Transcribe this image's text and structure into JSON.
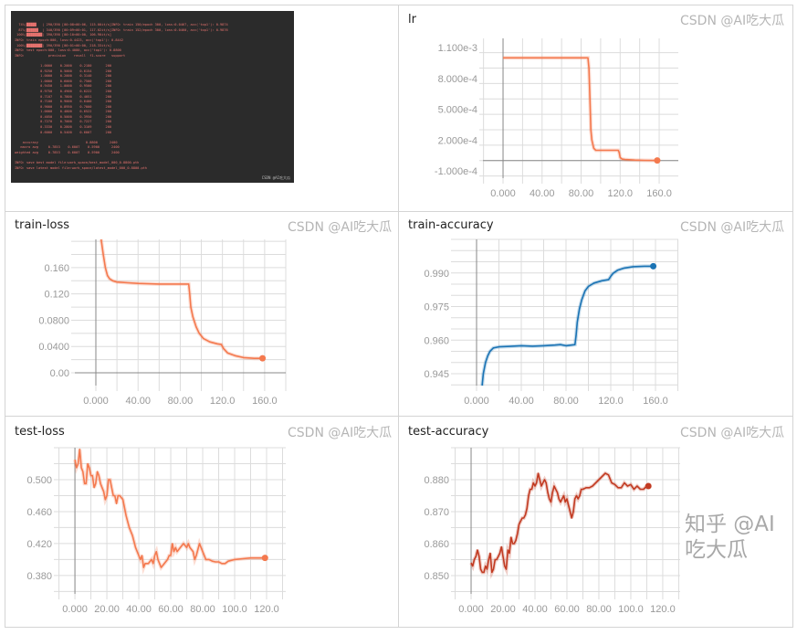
{
  "terminal": {
    "lines": [
      "  74%|█████   | 290/390 [00:08<00:06, 115.00it/s]INFO: train 150/epoch 300, loss:0.0467, acc('top1'): 0.9874",
      "  87%|██████  | 340/390 [00:09<00:01, 117.02it/s]INFO: train 152/epoch 300, loss:0.0460, acc('top1'): 0.9876",
      " 100%|████████| 390/390 [00:10<00:00, 106.90it/s]",
      "INFO: train epoch:000, loss:0.4423, acc('top1'): 0.8442",
      " 100%|████████| 390/390 [00:01<00:00, 218.33it/s]",
      "INFO: test epoch:000, loss:0.4080, acc('top1'): 0.8800",
      "INFO:            precision    recall  f1-score   support",
      "",
      "             1.0000    0.2000    0.2180       200",
      "             0.9250    0.5000    0.6154       200",
      "             1.0000    0.2000    0.3140       200",
      "             1.0000    0.6000    0.7500       200",
      "             0.9450    1.0000    0.9500       200",
      "             0.9750    0.4900    0.6222       200",
      "             0.7107    0.7800    0.4051       200",
      "             0.7100    0.9000    0.6400       200",
      "             0.9000    0.8950    0.7000       200",
      "             1.0000    0.4800    0.6522       200",
      "             0.4050    0.5000    0.3950       200",
      "             0.7270    0.7000    0.7227       200",
      "             0.3330    0.2800    0.3109       200",
      "             0.6000    0.5400    0.6007       200",
      "",
      "    accuracy                        0.8800      2400",
      "   macro avg     0.7853    0.6007    0.5900      2400",
      "weighted avg     0.7853    0.6007    0.5900      2400",
      "",
      "INFO: save best model file:work_space/best_model_000_0.8800.pth",
      "INFO: save latest model file:work_space/latest_model_000_0.8800.pth"
    ],
    "watermark": "CSDN @AI吃大瓜"
  },
  "watermark": "CSDN @AI吃大瓜",
  "big_watermark": "知乎 @AI吃大瓜",
  "chart_data": [
    {
      "id": "lr",
      "type": "line",
      "title": "lr",
      "color": "#f4794e",
      "xlim": [
        -20.6,
        179.6
      ],
      "ylim": [
        -0.000171,
        0.001189
      ],
      "xticks": [
        0,
        40,
        80,
        120,
        160
      ],
      "xtick_labels": [
        "0.000",
        "40.00",
        "80.00",
        "120.0",
        "160.0"
      ],
      "yticks": [
        0.0011,
        0.0008,
        0.0005,
        0.0002,
        -0.0001
      ],
      "ytick_labels": [
        "1.100e-3",
        "8.000e-4",
        "5.000e-4",
        "2.000e-4",
        "-1.000e-4"
      ],
      "xgrid_step": 20,
      "ygrid_step": 0.00015,
      "grid": true,
      "x": [
        0,
        20,
        40,
        60,
        80,
        87,
        88,
        89,
        90,
        91,
        93,
        95,
        100,
        110,
        118,
        119,
        120,
        122,
        125,
        135,
        145,
        158
      ],
      "y": [
        0.001,
        0.001,
        0.001,
        0.001,
        0.001,
        0.001,
        0.0009,
        0.0006,
        0.0003,
        0.0002,
        0.00012,
        0.0001,
        0.0001,
        0.0001,
        0.0001,
        8e-05,
        3e-05,
        1.5e-05,
        1e-05,
        5e-06,
        2e-06,
        1e-06
      ]
    },
    {
      "id": "train-loss",
      "type": "line",
      "title": "train-loss",
      "color": "#f4794e",
      "xlim": [
        -19.9,
        180
      ],
      "ylim": [
        -0.0195,
        0.203
      ],
      "xticks": [
        0,
        40,
        80,
        120,
        160
      ],
      "xtick_labels": [
        "0.000",
        "40.00",
        "80.00",
        "120.0",
        "160.0"
      ],
      "yticks": [
        0.16,
        0.12,
        0.08,
        0.04,
        0.0
      ],
      "ytick_labels": [
        "0.160",
        "0.120",
        "0.0800",
        "0.0400",
        "0.00"
      ],
      "xgrid_step": 20,
      "ygrid_step": 0.02,
      "grid": true,
      "x": [
        5,
        7,
        9,
        11,
        13,
        16,
        20,
        30,
        40,
        60,
        80,
        88,
        89,
        90,
        92,
        95,
        98,
        102,
        108,
        115,
        119,
        121,
        125,
        132,
        140,
        150,
        158
      ],
      "y": [
        0.203,
        0.18,
        0.16,
        0.148,
        0.143,
        0.14,
        0.138,
        0.137,
        0.136,
        0.135,
        0.135,
        0.135,
        0.12,
        0.1,
        0.085,
        0.07,
        0.06,
        0.052,
        0.047,
        0.044,
        0.043,
        0.037,
        0.03,
        0.026,
        0.023,
        0.022,
        0.022
      ]
    },
    {
      "id": "train-accuracy",
      "type": "line",
      "title": "train-accuracy",
      "color": "#1a73b4",
      "xlim": [
        -19.6,
        180.4
      ],
      "ylim": [
        0.9397,
        1.005
      ],
      "xticks": [
        0,
        40,
        80,
        120,
        160
      ],
      "xtick_labels": [
        "0.000",
        "40.00",
        "80.00",
        "120.0",
        "160.0"
      ],
      "yticks": [
        0.99,
        0.975,
        0.96,
        0.945
      ],
      "ytick_labels": [
        "0.990",
        "0.975",
        "0.960",
        "0.945"
      ],
      "xgrid_step": 20,
      "ygrid_step": 0.005,
      "grid": true,
      "x": [
        5,
        6,
        8,
        10,
        12,
        15,
        20,
        30,
        40,
        50,
        60,
        70,
        75,
        80,
        88,
        89,
        90,
        92,
        94,
        97,
        100,
        105,
        112,
        118,
        120,
        122,
        126,
        132,
        140,
        150,
        158
      ],
      "y": [
        0.9397,
        0.945,
        0.95,
        0.953,
        0.955,
        0.9565,
        0.957,
        0.9572,
        0.9575,
        0.9573,
        0.9575,
        0.9578,
        0.958,
        0.9575,
        0.958,
        0.962,
        0.968,
        0.974,
        0.978,
        0.982,
        0.984,
        0.9855,
        0.9865,
        0.987,
        0.9885,
        0.9898,
        0.9912,
        0.9922,
        0.9928,
        0.993,
        0.993
      ]
    },
    {
      "id": "test-loss",
      "type": "line",
      "title": "test-loss",
      "color": "#f4794e",
      "xlim": [
        -10.9,
        132
      ],
      "ylim": [
        0.357,
        0.54
      ],
      "xticks": [
        0,
        20,
        40,
        60,
        80,
        100,
        120
      ],
      "xtick_labels": [
        "0.000",
        "20.00",
        "40.00",
        "60.00",
        "80.00",
        "100.0",
        "120.0"
      ],
      "yticks": [
        0.5,
        0.46,
        0.42,
        0.38
      ],
      "ytick_labels": [
        "0.500",
        "0.460",
        "0.420",
        "0.380"
      ],
      "xgrid_step": 10,
      "ygrid_step": 0.02,
      "grid": true,
      "x": [
        0,
        1,
        2,
        3,
        4,
        5,
        6,
        7,
        8,
        9,
        10,
        11,
        12,
        13,
        14,
        15,
        16,
        17,
        18,
        19,
        20,
        21,
        22,
        23,
        24,
        25,
        26,
        27,
        28,
        30,
        32,
        34,
        36,
        38,
        40,
        41,
        42,
        43,
        44,
        46,
        48,
        49,
        50,
        51,
        52,
        54,
        56,
        58,
        59,
        60,
        61,
        62,
        63,
        64,
        66,
        68,
        70,
        71,
        72,
        74,
        75,
        76,
        78,
        80,
        82,
        84,
        86,
        88,
        90,
        92,
        94,
        96,
        100,
        105,
        110,
        115,
        119
      ],
      "y": [
        0.525,
        0.515,
        0.52,
        0.538,
        0.515,
        0.51,
        0.495,
        0.495,
        0.52,
        0.515,
        0.505,
        0.505,
        0.49,
        0.495,
        0.51,
        0.505,
        0.495,
        0.49,
        0.485,
        0.475,
        0.48,
        0.5,
        0.5,
        0.49,
        0.48,
        0.48,
        0.47,
        0.48,
        0.48,
        0.475,
        0.455,
        0.44,
        0.43,
        0.415,
        0.405,
        0.4,
        0.405,
        0.39,
        0.395,
        0.395,
        0.4,
        0.395,
        0.405,
        0.41,
        0.4,
        0.39,
        0.395,
        0.4,
        0.405,
        0.405,
        0.42,
        0.41,
        0.415,
        0.41,
        0.415,
        0.42,
        0.415,
        0.42,
        0.415,
        0.41,
        0.4,
        0.405,
        0.42,
        0.41,
        0.4,
        0.4,
        0.398,
        0.397,
        0.397,
        0.395,
        0.395,
        0.398,
        0.4,
        0.401,
        0.402,
        0.402,
        0.402
      ]
    },
    {
      "id": "test-accuracy",
      "type": "line",
      "title": "test-accuracy",
      "color": "#c23b22",
      "xlim": [
        -10.3,
        130.9
      ],
      "ylim": [
        0.8443,
        0.89
      ],
      "xticks": [
        0,
        20,
        40,
        60,
        80,
        100,
        120
      ],
      "xtick_labels": [
        "0.000",
        "20.00",
        "40.00",
        "60.00",
        "80.00",
        "100.0",
        "120.0"
      ],
      "yticks": [
        0.88,
        0.87,
        0.86,
        0.85
      ],
      "ytick_labels": [
        "0.880",
        "0.870",
        "0.860",
        "0.850"
      ],
      "xgrid_step": 10,
      "ygrid_step": 0.005,
      "grid": true,
      "x": [
        0,
        1,
        2,
        3,
        4,
        5,
        6,
        7,
        8,
        9,
        10,
        11,
        12,
        13,
        14,
        15,
        16,
        17,
        18,
        19,
        20,
        21,
        22,
        23,
        24,
        25,
        26,
        27,
        28,
        29,
        30,
        31,
        32,
        33,
        34,
        35,
        36,
        37,
        38,
        39,
        40,
        41,
        42,
        43,
        44,
        45,
        46,
        47,
        48,
        49,
        50,
        51,
        52,
        53,
        54,
        55,
        56,
        57,
        58,
        59,
        60,
        61,
        62,
        63,
        64,
        65,
        66,
        67,
        68,
        69,
        70,
        72,
        74,
        76,
        78,
        80,
        82,
        84,
        86,
        88,
        90,
        92,
        94,
        96,
        98,
        100,
        102,
        104,
        106,
        108,
        110,
        111
      ],
      "y": [
        0.854,
        0.853,
        0.855,
        0.856,
        0.858,
        0.856,
        0.852,
        0.851,
        0.851,
        0.853,
        0.852,
        0.855,
        0.857,
        0.851,
        0.852,
        0.855,
        0.855,
        0.856,
        0.857,
        0.859,
        0.856,
        0.853,
        0.852,
        0.858,
        0.857,
        0.862,
        0.86,
        0.86,
        0.861,
        0.863,
        0.866,
        0.867,
        0.868,
        0.868,
        0.869,
        0.871,
        0.875,
        0.877,
        0.877,
        0.879,
        0.878,
        0.879,
        0.882,
        0.88,
        0.878,
        0.879,
        0.88,
        0.879,
        0.876,
        0.874,
        0.873,
        0.876,
        0.878,
        0.877,
        0.876,
        0.874,
        0.873,
        0.874,
        0.875,
        0.873,
        0.874,
        0.872,
        0.87,
        0.868,
        0.87,
        0.874,
        0.875,
        0.874,
        0.875,
        0.877,
        0.877,
        0.8775,
        0.8775,
        0.878,
        0.879,
        0.88,
        0.881,
        0.882,
        0.8815,
        0.879,
        0.8785,
        0.8775,
        0.8775,
        0.879,
        0.878,
        0.8785,
        0.877,
        0.878,
        0.877,
        0.877,
        0.878,
        0.878
      ]
    }
  ]
}
